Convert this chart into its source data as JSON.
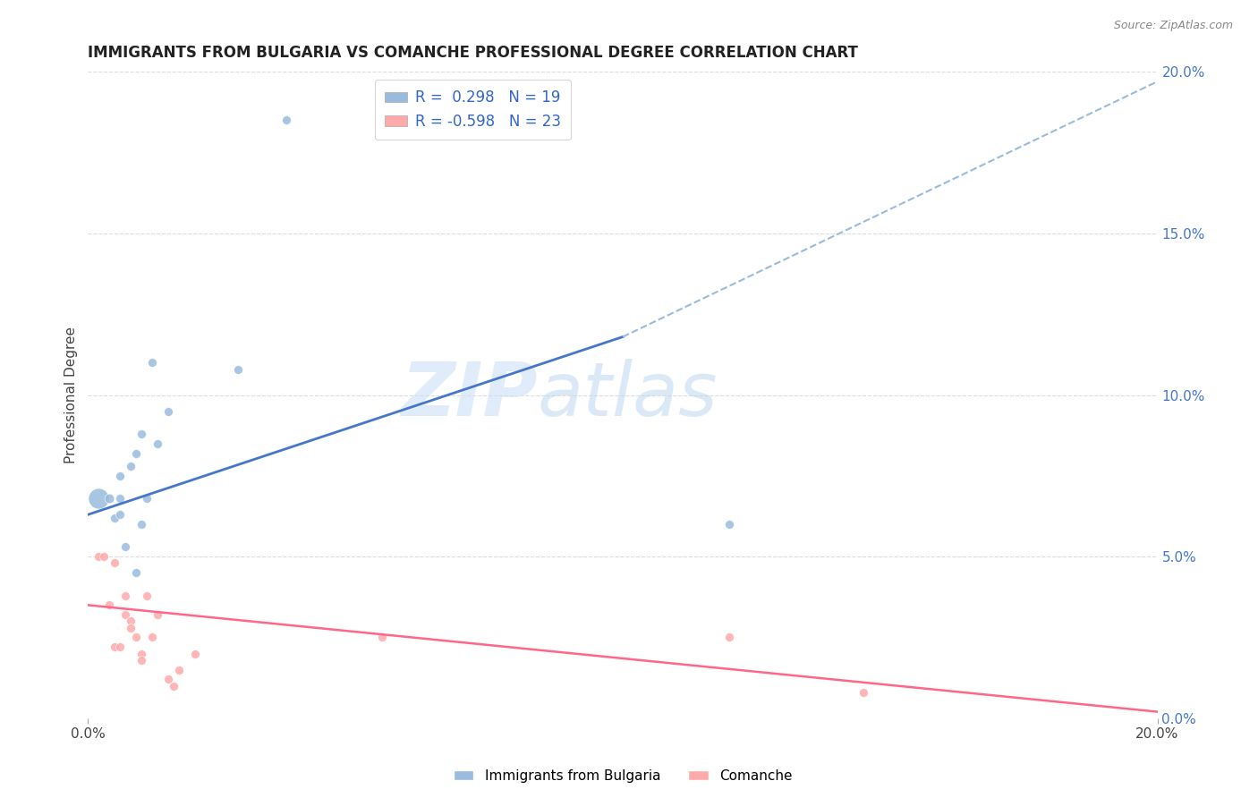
{
  "title": "IMMIGRANTS FROM BULGARIA VS COMANCHE PROFESSIONAL DEGREE CORRELATION CHART",
  "source": "Source: ZipAtlas.com",
  "ylabel": "Professional Degree",
  "xlim": [
    0.0,
    0.2
  ],
  "ylim": [
    0.0,
    0.2
  ],
  "legend_r_bulgaria": "0.298",
  "legend_n_bulgaria": "19",
  "legend_r_comanche": "-0.598",
  "legend_n_comanche": "23",
  "bulgaria_color": "#99BBDD",
  "comanche_color": "#FFAAAA",
  "trendline_bulgaria_color": "#4477CC",
  "trendline_comanche_color": "#FF6688",
  "trendline_dashed_color": "#99BBDD",
  "watermark_zip": "ZIP",
  "watermark_atlas": "atlas",
  "bulgaria_points": [
    [
      0.002,
      0.068,
      55
    ],
    [
      0.004,
      0.068,
      12
    ],
    [
      0.005,
      0.062,
      10
    ],
    [
      0.006,
      0.063,
      10
    ],
    [
      0.006,
      0.068,
      10
    ],
    [
      0.006,
      0.075,
      10
    ],
    [
      0.007,
      0.053,
      10
    ],
    [
      0.008,
      0.078,
      10
    ],
    [
      0.009,
      0.082,
      10
    ],
    [
      0.009,
      0.045,
      10
    ],
    [
      0.01,
      0.06,
      10
    ],
    [
      0.01,
      0.088,
      10
    ],
    [
      0.011,
      0.068,
      10
    ],
    [
      0.012,
      0.11,
      10
    ],
    [
      0.013,
      0.085,
      10
    ],
    [
      0.015,
      0.095,
      10
    ],
    [
      0.028,
      0.108,
      10
    ],
    [
      0.037,
      0.185,
      10
    ],
    [
      0.12,
      0.06,
      10
    ]
  ],
  "comanche_points": [
    [
      0.002,
      0.05,
      10
    ],
    [
      0.003,
      0.05,
      10
    ],
    [
      0.004,
      0.035,
      10
    ],
    [
      0.005,
      0.022,
      10
    ],
    [
      0.005,
      0.048,
      10
    ],
    [
      0.006,
      0.022,
      10
    ],
    [
      0.007,
      0.038,
      10
    ],
    [
      0.007,
      0.032,
      10
    ],
    [
      0.008,
      0.03,
      10
    ],
    [
      0.008,
      0.028,
      10
    ],
    [
      0.009,
      0.025,
      10
    ],
    [
      0.01,
      0.02,
      10
    ],
    [
      0.01,
      0.018,
      10
    ],
    [
      0.011,
      0.038,
      10
    ],
    [
      0.012,
      0.025,
      10
    ],
    [
      0.013,
      0.032,
      10
    ],
    [
      0.015,
      0.012,
      10
    ],
    [
      0.016,
      0.01,
      10
    ],
    [
      0.017,
      0.015,
      10
    ],
    [
      0.02,
      0.02,
      10
    ],
    [
      0.055,
      0.025,
      10
    ],
    [
      0.12,
      0.025,
      10
    ],
    [
      0.145,
      0.008,
      10
    ]
  ],
  "bulgaria_trendline_solid": [
    [
      0.0,
      0.063
    ],
    [
      0.1,
      0.118
    ]
  ],
  "bulgaria_trendline_dashed": [
    [
      0.1,
      0.118
    ],
    [
      0.2,
      0.197
    ]
  ],
  "comanche_trendline": [
    [
      0.0,
      0.035
    ],
    [
      0.2,
      0.002
    ]
  ]
}
